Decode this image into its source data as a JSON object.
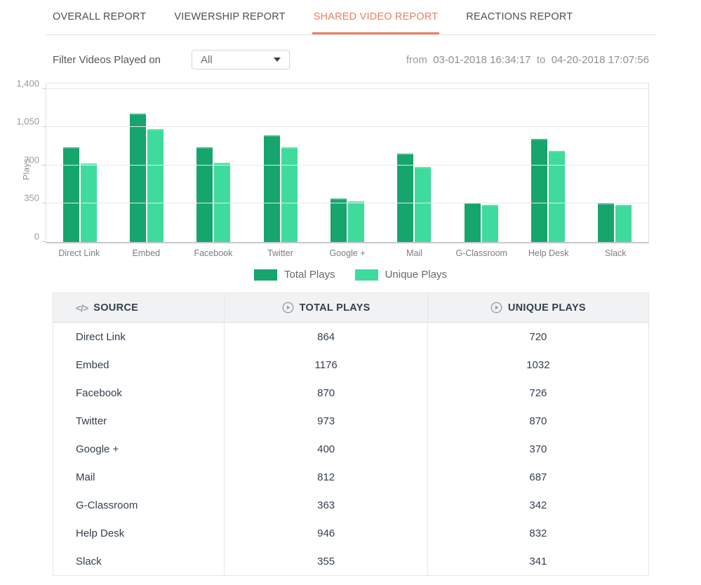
{
  "tabs": {
    "active_index": 2,
    "items": [
      {
        "label": "OVERALL REPORT"
      },
      {
        "label": "VIEWERSHIP REPORT"
      },
      {
        "label": "SHARED VIDEO REPORT"
      },
      {
        "label": "REACTIONS REPORT"
      }
    ]
  },
  "filter": {
    "label": "Filter Videos Played on",
    "dropdown_value": "All"
  },
  "date_range": {
    "from_label": "from",
    "from_value": "03-01-2018 16:34:17",
    "to_label": "to",
    "to_value": "04-20-2018 17:07:56"
  },
  "chart_data": {
    "type": "bar",
    "categories": [
      "Direct Link",
      "Embed",
      "Facebook",
      "Twitter",
      "Google +",
      "Mail",
      "G-Classroom",
      "Help Desk",
      "Slack"
    ],
    "series": [
      {
        "name": "Total Plays",
        "color": "#16a56c",
        "values": [
          864,
          1176,
          870,
          973,
          400,
          812,
          363,
          946,
          355
        ]
      },
      {
        "name": "Unique Plays",
        "color": "#3edb9c",
        "values": [
          720,
          1032,
          726,
          870,
          370,
          687,
          342,
          832,
          341
        ]
      }
    ],
    "title": "",
    "xlabel": "",
    "ylabel": "Plays",
    "ylim": [
      0,
      1470
    ],
    "yticks": [
      0,
      350,
      700,
      1050,
      1400
    ],
    "ytick_labels": [
      "0",
      "350",
      "700",
      "1,050",
      "1,400"
    ],
    "grid": true,
    "legend_position": "bottom"
  },
  "table": {
    "code_glyph": "</>",
    "columns": [
      {
        "label": "SOURCE",
        "icon": "code-icon"
      },
      {
        "label": "TOTAL PLAYS",
        "icon": "play-circle-icon"
      },
      {
        "label": "UNIQUE PLAYS",
        "icon": "play-circle-icon"
      }
    ],
    "rows": [
      {
        "source": "Direct Link",
        "total_plays": "864",
        "unique_plays": "720"
      },
      {
        "source": "Embed",
        "total_plays": "1176",
        "unique_plays": "1032"
      },
      {
        "source": "Facebook",
        "total_plays": "870",
        "unique_plays": "726"
      },
      {
        "source": "Twitter",
        "total_plays": "973",
        "unique_plays": "870"
      },
      {
        "source": "Google +",
        "total_plays": "400",
        "unique_plays": "370"
      },
      {
        "source": "Mail",
        "total_plays": "812",
        "unique_plays": "687"
      },
      {
        "source": "G-Classroom",
        "total_plays": "363",
        "unique_plays": "342"
      },
      {
        "source": "Help Desk",
        "total_plays": "946",
        "unique_plays": "832"
      },
      {
        "source": "Slack",
        "total_plays": "355",
        "unique_plays": "341"
      }
    ]
  },
  "colors": {
    "accent_active_tab": "#ee7d61",
    "series_total": "#16a56c",
    "series_unique": "#3edb9c",
    "table_header_bg": "#f1f2f3",
    "text_dark": "#333f50",
    "text_gray": "#9a9a9a"
  }
}
